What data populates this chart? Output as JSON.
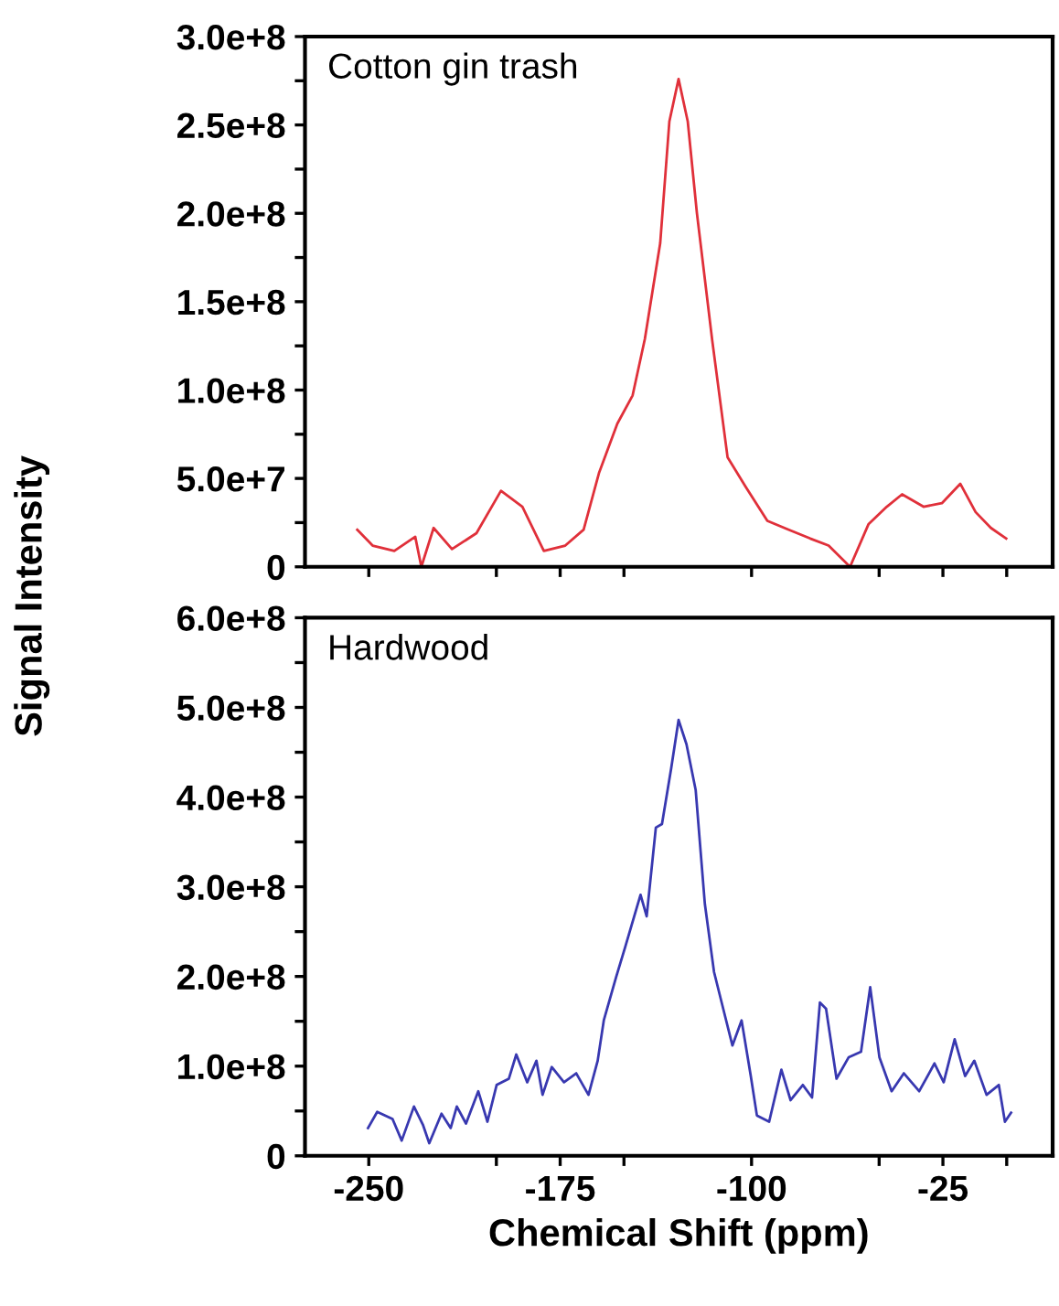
{
  "chart_data": [
    {
      "type": "line",
      "annotations": [
        "Cotton gin trash"
      ],
      "ylabel": "Signal Intensity",
      "xlim": [
        -275,
        18
      ],
      "ylim": [
        0,
        300000000
      ],
      "tick_labels": "y",
      "grid": false,
      "marker": "none",
      "line_style": "solid",
      "xticks": [
        {
          "value": -250,
          "label": null
        },
        {
          "value": -200,
          "label": null
        },
        {
          "value": -175,
          "label": null
        },
        {
          "value": -150,
          "label": null
        },
        {
          "value": -100,
          "label": null
        },
        {
          "value": -50,
          "label": null
        },
        {
          "value": -25,
          "label": null
        },
        {
          "value": 0,
          "label": null
        }
      ],
      "yticks": [
        0,
        {
          "value": 25000000,
          "label": null
        },
        {
          "value": 50000000,
          "label": "5.0e+7"
        },
        {
          "value": 75000000,
          "label": null
        },
        {
          "value": 100000000,
          "label": "1.0e+8"
        },
        {
          "value": 125000000,
          "label": null
        },
        {
          "value": 150000000,
          "label": "1.5e+8"
        },
        {
          "value": 175000000,
          "label": null
        },
        {
          "value": 200000000,
          "label": "2.0e+8"
        },
        {
          "value": 225000000,
          "label": null
        },
        {
          "value": 250000000,
          "label": "2.5e+8"
        },
        {
          "value": 275000000,
          "label": null
        },
        {
          "value": 300000000,
          "label": "3.0e+8"
        }
      ],
      "x": [
        -254.5,
        -248.5,
        -240,
        -231.8,
        -229.4,
        -224.6,
        -217.4,
        -207.8,
        -198.2,
        -189.8,
        -181.4,
        -173,
        -165.8,
        -159.8,
        -152.6,
        -146.6,
        -141.8,
        -135.8,
        -132.2,
        -128.6,
        -125,
        -121.4,
        -115.4,
        -109.4,
        -102.2,
        -93.8,
        -85.4,
        -77,
        -69.8,
        -61.4,
        -54.2,
        -47,
        -41,
        -32.6,
        -25.4,
        -18.2,
        -12.2,
        -6.2,
        -0.2
      ],
      "series": [
        {
          "color": "#e0303a",
          "values": [
            21000000.0,
            12000000.0,
            9000000.0,
            17000000.0,
            0,
            22000000.0,
            10000000.0,
            19000000.0,
            43000000.0,
            34000000.0,
            9000000.0,
            12000000.0,
            21000000.0,
            53000000.0,
            81000000.0,
            97000000.0,
            129000000.0,
            183000000.0,
            252000000.0,
            276000000.0,
            252000000.0,
            200000000.0,
            128000000.0,
            62000000.0,
            45000000.0,
            26000000.0,
            21000000.0,
            16000000.0,
            12000000.0,
            0,
            24000000.0,
            34000000.0,
            41000000.0,
            34000000.0,
            36000000.0,
            47000000.0,
            31000000.0,
            22000000.0,
            16000000.0
          ]
        }
      ]
    },
    {
      "type": "line",
      "annotations": [
        "Hardwood"
      ],
      "xlabel": "Chemical Shift (ppm)",
      "xlim": [
        -275,
        18
      ],
      "ylim": [
        0,
        600000000
      ],
      "grid": false,
      "marker": "none",
      "line_style": "solid",
      "xticks": [
        -250,
        {
          "value": -200,
          "label": null
        },
        -175,
        {
          "value": -150,
          "label": null
        },
        -100,
        {
          "value": -50,
          "label": null
        },
        -25,
        {
          "value": 0,
          "label": null
        }
      ],
      "yticks": [
        0,
        {
          "value": 50000000,
          "label": null
        },
        {
          "value": 100000000,
          "label": "1.0e+8"
        },
        {
          "value": 150000000,
          "label": null
        },
        {
          "value": 200000000,
          "label": "2.0e+8"
        },
        {
          "value": 250000000,
          "label": null
        },
        {
          "value": 300000000,
          "label": "3.0e+8"
        },
        {
          "value": 350000000,
          "label": null
        },
        {
          "value": 400000000,
          "label": "4.0e+8"
        },
        {
          "value": 450000000,
          "label": null
        },
        {
          "value": 500000000,
          "label": "5.0e+8"
        },
        {
          "value": 550000000,
          "label": null
        },
        {
          "value": 600000000,
          "label": "6.0e+8"
        }
      ],
      "x": [
        -250.3,
        -246.7,
        -240.7,
        -237.1,
        -232.3,
        -228.7,
        -226.3,
        -221.5,
        -217.9,
        -215.5,
        -211.9,
        -207.1,
        -203.5,
        -199.9,
        -195.1,
        -192.2,
        -187.9,
        -184.3,
        -181.9,
        -178.3,
        -173.5,
        -168.7,
        -163.9,
        -160.3,
        -157.9,
        -153.1,
        -149.5,
        -143.5,
        -141.1,
        -137.5,
        -135.1,
        -131.5,
        -128.6,
        -125.5,
        -121.9,
        -118.3,
        -114.7,
        -111.1,
        -107.5,
        -103.9,
        -100.3,
        -97.9,
        -93.1,
        -88.3,
        -84.7,
        -79.9,
        -76.3,
        -73.2,
        -70.8,
        -66.7,
        -61.9,
        -57.1,
        -53.5,
        -49.9,
        -45.1,
        -40.3,
        -34.3,
        -28.3,
        -24.7,
        -20.4,
        -16.3,
        -12.7,
        -7.9,
        -3.1,
        -0.7,
        1.7
      ],
      "series": [
        {
          "color": "#3838b0",
          "values": [
            31000000.0,
            49000000.0,
            41000000.0,
            17000000.0,
            55000000.0,
            34000000.0,
            14000000.0,
            47000000.0,
            31000000.0,
            55000000.0,
            36000000.0,
            72000000.0,
            38000000.0,
            79000000.0,
            86000000.0,
            113000000.0,
            82000000.0,
            106000000.0,
            68000000.0,
            99000000.0,
            82000000.0,
            92000000.0,
            68000000.0,
            106000000.0,
            151000000.0,
            199000000.0,
            233000000.0,
            291000000.0,
            267000000.0,
            366000000.0,
            370000000.0,
            432000000.0,
            486000000.0,
            459000000.0,
            408000000.0,
            281000000.0,
            205000000.0,
            164000000.0,
            123000000.0,
            151000000.0,
            89000000.0,
            45000000.0,
            38000000.0,
            96000000.0,
            62000000.0,
            79000000.0,
            65000000.0,
            171000000.0,
            164000000.0,
            86000000.0,
            110000000.0,
            116000000.0,
            188000000.0,
            110000000.0,
            72000000.0,
            92000000.0,
            72000000.0,
            103000000.0,
            82000000.0,
            130000000.0,
            89000000.0,
            106000000.0,
            68000000.0,
            79000000.0,
            38000000.0,
            48000000.0
          ]
        }
      ]
    }
  ]
}
